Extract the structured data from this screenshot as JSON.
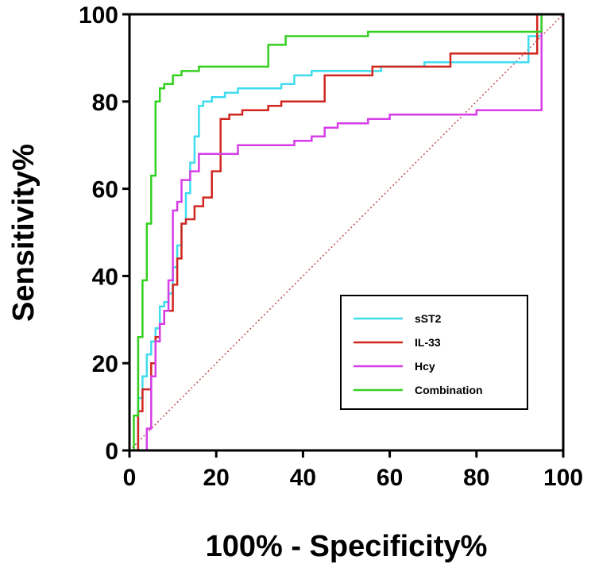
{
  "chart_data": {
    "type": "line",
    "title": "",
    "xlabel": "100% - Specificity%",
    "ylabel": "Sensitivity%",
    "xlim": [
      0,
      100
    ],
    "ylim": [
      0,
      100
    ],
    "xticks": [
      0,
      20,
      40,
      60,
      80,
      100
    ],
    "yticks": [
      0,
      20,
      40,
      60,
      80,
      100
    ],
    "xtick_labels": [
      "0",
      "20",
      "40",
      "60",
      "80",
      "100"
    ],
    "ytick_labels": [
      "0",
      "20",
      "40",
      "60",
      "80",
      "100"
    ],
    "grid": false,
    "legend_position": "lower-right",
    "reference_line": {
      "name": "reference",
      "color": "#c0504d",
      "style": "dotted",
      "x": [
        0,
        100
      ],
      "y": [
        0,
        100
      ]
    },
    "series": [
      {
        "name": "sST2",
        "color": "#3fdcef",
        "x": [
          0,
          2,
          2,
          3,
          3,
          4,
          4,
          5,
          5,
          6,
          6,
          7,
          7,
          8,
          8,
          9,
          9,
          10,
          10,
          11,
          11,
          12,
          12,
          13,
          13,
          14,
          14,
          15,
          15,
          16,
          16,
          17,
          17,
          19,
          19,
          22,
          22,
          25,
          25,
          28,
          28,
          35,
          35,
          38,
          38,
          42,
          42,
          55,
          55,
          58,
          58,
          68,
          68,
          92,
          92,
          95,
          95,
          100
        ],
        "y": [
          0,
          0,
          12,
          12,
          17,
          17,
          22,
          22,
          25,
          25,
          28,
          28,
          33,
          33,
          34,
          34,
          36,
          36,
          42,
          42,
          47,
          47,
          52,
          52,
          59,
          59,
          66,
          66,
          72,
          72,
          79,
          79,
          80,
          80,
          81,
          81,
          82,
          82,
          83,
          83,
          83,
          83,
          84,
          84,
          86,
          86,
          87,
          87,
          87,
          87,
          88,
          88,
          89,
          89,
          95,
          95,
          100,
          100
        ]
      },
      {
        "name": "IL-33",
        "color": "#d0261f",
        "x": [
          0,
          2,
          2,
          3,
          3,
          5,
          5,
          6,
          6,
          7,
          7,
          8,
          8,
          10,
          10,
          11,
          11,
          12,
          12,
          13,
          13,
          15,
          15,
          17,
          17,
          19,
          19,
          21,
          21,
          23,
          23,
          26,
          26,
          32,
          32,
          35,
          35,
          40,
          40,
          45,
          45,
          56,
          56,
          74,
          74,
          94,
          94,
          100
        ],
        "y": [
          0,
          0,
          9,
          9,
          14,
          14,
          20,
          20,
          26,
          26,
          29,
          29,
          32,
          32,
          38,
          38,
          44,
          44,
          52,
          52,
          53,
          53,
          56,
          56,
          58,
          58,
          64,
          64,
          76,
          76,
          77,
          77,
          78,
          78,
          79,
          79,
          80,
          80,
          80,
          80,
          86,
          86,
          88,
          88,
          91,
          91,
          100,
          100
        ]
      },
      {
        "name": "Hcy",
        "color": "#d63de8",
        "x": [
          0,
          4,
          4,
          5,
          5,
          6,
          6,
          7,
          7,
          8,
          8,
          9,
          9,
          10,
          10,
          11,
          11,
          12,
          12,
          14,
          14,
          16,
          16,
          22,
          22,
          25,
          25,
          38,
          38,
          42,
          42,
          45,
          45,
          48,
          48,
          55,
          55,
          60,
          60,
          70,
          70,
          80,
          80,
          95,
          95,
          100
        ],
        "y": [
          0,
          0,
          5,
          5,
          17,
          17,
          25,
          25,
          29,
          29,
          32,
          32,
          39,
          39,
          55,
          55,
          57,
          57,
          62,
          62,
          64,
          64,
          68,
          68,
          68,
          68,
          70,
          70,
          71,
          71,
          72,
          72,
          74,
          74,
          75,
          75,
          76,
          76,
          77,
          77,
          77,
          77,
          78,
          78,
          100,
          100
        ]
      },
      {
        "name": "Combination",
        "color": "#33d11f",
        "x": [
          0,
          1,
          1,
          2,
          2,
          3,
          3,
          4,
          4,
          5,
          5,
          6,
          6,
          7,
          7,
          8,
          8,
          10,
          10,
          12,
          12,
          16,
          16,
          20,
          20,
          32,
          32,
          36,
          36,
          55,
          55,
          95,
          95,
          100
        ],
        "y": [
          0,
          0,
          8,
          8,
          26,
          26,
          39,
          39,
          52,
          52,
          63,
          63,
          80,
          80,
          83,
          83,
          84,
          84,
          86,
          86,
          87,
          87,
          88,
          88,
          88,
          88,
          93,
          93,
          95,
          95,
          96,
          96,
          100,
          100
        ]
      }
    ]
  }
}
